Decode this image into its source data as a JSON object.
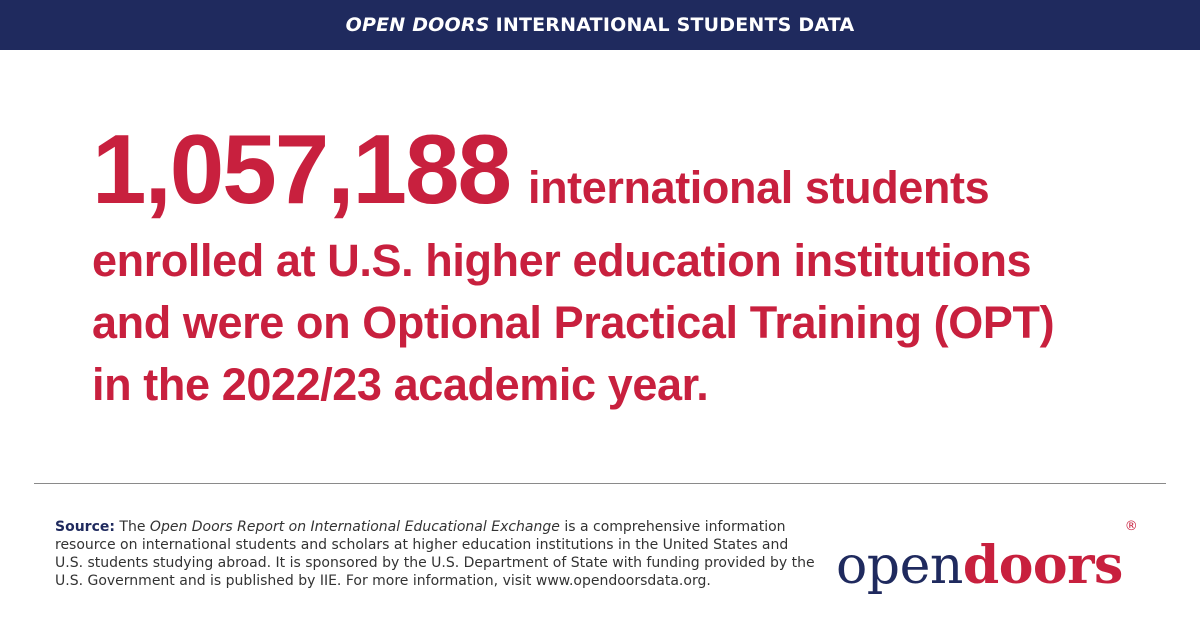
{
  "header": {
    "title_italic": "OPEN DOORS",
    "title_rest": "INTERNATIONAL STUDENTS DATA"
  },
  "headline": {
    "number": "1,057,188",
    "lead": "international students",
    "rest": "enrolled at U.S. higher education institutions and were on Optional Practical Training (OPT) in the 2022/23 academic year."
  },
  "source": {
    "label": "Source:",
    "intro": "The",
    "report_title": "Open Doors Report on International Educational Exchange",
    "text": "is a comprehensive information resource on international students and scholars at higher education institutions in the United States and U.S. students studying abroad. It is sponsored by the U.S. Department of State with funding provided by the U.S. Government and is published by IIE. For more information, visit www.opendoorsdata.org."
  },
  "logo": {
    "part1": "open",
    "part2": "doors",
    "registered": "®"
  },
  "colors": {
    "navy": "#1f2a5e",
    "crimson": "#c8203e",
    "text_gray": "#333333"
  }
}
